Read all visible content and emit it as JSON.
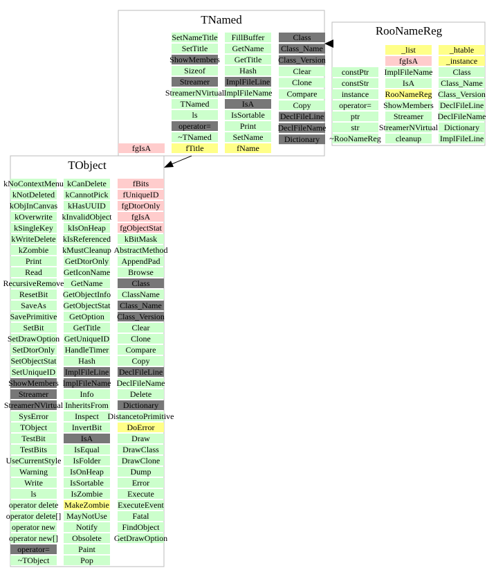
{
  "boxes": [
    {
      "title": "TNamed",
      "columns": [
        [
          {
            "label": "fgIsA",
            "color": "#ffcccc"
          }
        ],
        [
          {
            "label": "SetNameTitle",
            "color": "#ccffcc"
          },
          {
            "label": "SetTitle",
            "color": "#ccffcc"
          },
          {
            "label": "ShowMembers",
            "color": "#777777"
          },
          {
            "label": "Sizeof",
            "color": "#ccffcc"
          },
          {
            "label": "Streamer",
            "color": "#777777"
          },
          {
            "label": "StreamerNVirtual",
            "color": "#ccffcc"
          },
          {
            "label": "TNamed",
            "color": "#ccffcc"
          },
          {
            "label": "ls",
            "color": "#ccffcc"
          },
          {
            "label": "operator=",
            "color": "#777777"
          },
          {
            "label": "~TNamed",
            "color": "#ccffcc"
          },
          {
            "label": "fTitle",
            "color": "#ffff88"
          }
        ],
        [
          {
            "label": "FillBuffer",
            "color": "#ccffcc"
          },
          {
            "label": "GetName",
            "color": "#ccffcc"
          },
          {
            "label": "GetTitle",
            "color": "#ccffcc"
          },
          {
            "label": "Hash",
            "color": "#ccffcc"
          },
          {
            "label": "ImplFileLine",
            "color": "#777777"
          },
          {
            "label": "ImplFileName",
            "color": "#ccffcc"
          },
          {
            "label": "IsA",
            "color": "#777777"
          },
          {
            "label": "IsSortable",
            "color": "#ccffcc"
          },
          {
            "label": "Print",
            "color": "#ccffcc"
          },
          {
            "label": "SetName",
            "color": "#ccffcc"
          },
          {
            "label": "fName",
            "color": "#ffff88"
          }
        ],
        [
          {
            "label": "Class",
            "color": "#777777"
          },
          {
            "label": "Class_Name",
            "color": "#777777"
          },
          {
            "label": "Class_Version",
            "color": "#777777"
          },
          {
            "label": "Clear",
            "color": "#ccffcc"
          },
          {
            "label": "Clone",
            "color": "#ccffcc"
          },
          {
            "label": "Compare",
            "color": "#ccffcc"
          },
          {
            "label": "Copy",
            "color": "#ccffcc"
          },
          {
            "label": "DeclFileLine",
            "color": "#777777"
          },
          {
            "label": "DeclFileName",
            "color": "#777777"
          },
          {
            "label": "Dictionary",
            "color": "#777777"
          }
        ]
      ]
    },
    {
      "title": "RooNameReg",
      "columns": [
        [
          {
            "label": "constPtr",
            "color": "#ccffcc"
          },
          {
            "label": "constStr",
            "color": "#ccffcc"
          },
          {
            "label": "instance",
            "color": "#ccffcc"
          },
          {
            "label": "operator=",
            "color": "#ccffcc"
          },
          {
            "label": "ptr",
            "color": "#ccffcc"
          },
          {
            "label": "str",
            "color": "#ccffcc"
          },
          {
            "label": "~RooNameReg",
            "color": "#ccffcc"
          }
        ],
        [
          {
            "label": "_list",
            "color": "#ffff88"
          },
          {
            "label": "fgIsA",
            "color": "#ffcccc"
          },
          {
            "label": "ImplFileName",
            "color": "#ccffcc"
          },
          {
            "label": "IsA",
            "color": "#ccffcc"
          },
          {
            "label": "RooNameReg",
            "color": "#ffff88"
          },
          {
            "label": "ShowMembers",
            "color": "#ccffcc"
          },
          {
            "label": "Streamer",
            "color": "#ccffcc"
          },
          {
            "label": "StreamerNVirtual",
            "color": "#ccffcc"
          },
          {
            "label": "cleanup",
            "color": "#ccffcc"
          }
        ],
        [
          {
            "label": "_htable",
            "color": "#ffff88"
          },
          {
            "label": "_instance",
            "color": "#ffff88"
          },
          {
            "label": "Class",
            "color": "#ccffcc"
          },
          {
            "label": "Class_Name",
            "color": "#ccffcc"
          },
          {
            "label": "Class_Version",
            "color": "#ccffcc"
          },
          {
            "label": "DeclFileLine",
            "color": "#ccffcc"
          },
          {
            "label": "DeclFileName",
            "color": "#ccffcc"
          },
          {
            "label": "Dictionary",
            "color": "#ccffcc"
          },
          {
            "label": "ImplFileLine",
            "color": "#ccffcc"
          }
        ]
      ]
    },
    {
      "title": "TObject",
      "columns": [
        [
          {
            "label": "kNoContextMenu",
            "color": "#ccffcc"
          },
          {
            "label": "kNotDeleted",
            "color": "#ccffcc"
          },
          {
            "label": "kObjInCanvas",
            "color": "#ccffcc"
          },
          {
            "label": "kOverwrite",
            "color": "#ccffcc"
          },
          {
            "label": "kSingleKey",
            "color": "#ccffcc"
          },
          {
            "label": "kWriteDelete",
            "color": "#ccffcc"
          },
          {
            "label": "kZombie",
            "color": "#ccffcc"
          },
          {
            "label": "Print",
            "color": "#ccffcc"
          },
          {
            "label": "Read",
            "color": "#ccffcc"
          },
          {
            "label": "RecursiveRemove",
            "color": "#ccffcc"
          },
          {
            "label": "ResetBit",
            "color": "#ccffcc"
          },
          {
            "label": "SaveAs",
            "color": "#ccffcc"
          },
          {
            "label": "SavePrimitive",
            "color": "#ccffcc"
          },
          {
            "label": "SetBit",
            "color": "#ccffcc"
          },
          {
            "label": "SetDrawOption",
            "color": "#ccffcc"
          },
          {
            "label": "SetDtorOnly",
            "color": "#ccffcc"
          },
          {
            "label": "SetObjectStat",
            "color": "#ccffcc"
          },
          {
            "label": "SetUniqueID",
            "color": "#ccffcc"
          },
          {
            "label": "ShowMembers",
            "color": "#777777"
          },
          {
            "label": "Streamer",
            "color": "#777777"
          },
          {
            "label": "StreamerNVirtual",
            "color": "#777777"
          },
          {
            "label": "SysError",
            "color": "#ccffcc"
          },
          {
            "label": "TObject",
            "color": "#ccffcc"
          },
          {
            "label": "TestBit",
            "color": "#ccffcc"
          },
          {
            "label": "TestBits",
            "color": "#ccffcc"
          },
          {
            "label": "UseCurrentStyle",
            "color": "#ccffcc"
          },
          {
            "label": "Warning",
            "color": "#ccffcc"
          },
          {
            "label": "Write",
            "color": "#ccffcc"
          },
          {
            "label": "ls",
            "color": "#ccffcc"
          },
          {
            "label": "operator delete",
            "color": "#ccffcc"
          },
          {
            "label": "operator delete[]",
            "color": "#ccffcc"
          },
          {
            "label": "operator new",
            "color": "#ccffcc"
          },
          {
            "label": "operator new[]",
            "color": "#ccffcc"
          },
          {
            "label": "operator=",
            "color": "#777777"
          },
          {
            "label": "~TObject",
            "color": "#ccffcc"
          }
        ],
        [
          {
            "label": "kCanDelete",
            "color": "#ccffcc"
          },
          {
            "label": "kCannotPick",
            "color": "#ccffcc"
          },
          {
            "label": "kHasUUID",
            "color": "#ccffcc"
          },
          {
            "label": "kInvalidObject",
            "color": "#ccffcc"
          },
          {
            "label": "kIsOnHeap",
            "color": "#ccffcc"
          },
          {
            "label": "kIsReferenced",
            "color": "#ccffcc"
          },
          {
            "label": "kMustCleanup",
            "color": "#ccffcc"
          },
          {
            "label": "GetDtorOnly",
            "color": "#ccffcc"
          },
          {
            "label": "GetIconName",
            "color": "#ccffcc"
          },
          {
            "label": "GetName",
            "color": "#ccffcc"
          },
          {
            "label": "GetObjectInfo",
            "color": "#ccffcc"
          },
          {
            "label": "GetObjectStat",
            "color": "#ccffcc"
          },
          {
            "label": "GetOption",
            "color": "#ccffcc"
          },
          {
            "label": "GetTitle",
            "color": "#ccffcc"
          },
          {
            "label": "GetUniqueID",
            "color": "#ccffcc"
          },
          {
            "label": "HandleTimer",
            "color": "#ccffcc"
          },
          {
            "label": "Hash",
            "color": "#ccffcc"
          },
          {
            "label": "ImplFileLine",
            "color": "#777777"
          },
          {
            "label": "ImplFileName",
            "color": "#777777"
          },
          {
            "label": "Info",
            "color": "#ccffcc"
          },
          {
            "label": "InheritsFrom",
            "color": "#ccffcc"
          },
          {
            "label": "Inspect",
            "color": "#ccffcc"
          },
          {
            "label": "InvertBit",
            "color": "#ccffcc"
          },
          {
            "label": "IsA",
            "color": "#777777"
          },
          {
            "label": "IsEqual",
            "color": "#ccffcc"
          },
          {
            "label": "IsFolder",
            "color": "#ccffcc"
          },
          {
            "label": "IsOnHeap",
            "color": "#ccffcc"
          },
          {
            "label": "IsSortable",
            "color": "#ccffcc"
          },
          {
            "label": "IsZombie",
            "color": "#ccffcc"
          },
          {
            "label": "MakeZombie",
            "color": "#ffff88"
          },
          {
            "label": "MayNotUse",
            "color": "#ccffcc"
          },
          {
            "label": "Notify",
            "color": "#ccffcc"
          },
          {
            "label": "Obsolete",
            "color": "#ccffcc"
          },
          {
            "label": "Paint",
            "color": "#ccffcc"
          },
          {
            "label": "Pop",
            "color": "#ccffcc"
          }
        ],
        [
          {
            "label": "fBits",
            "color": "#ffcccc"
          },
          {
            "label": "fUniqueID",
            "color": "#ffcccc"
          },
          {
            "label": "fgDtorOnly",
            "color": "#ffcccc"
          },
          {
            "label": "fgIsA",
            "color": "#ffcccc"
          },
          {
            "label": "fgObjectStat",
            "color": "#ffcccc"
          },
          {
            "label": "kBitMask",
            "color": "#ccffcc"
          },
          {
            "label": "AbstractMethod",
            "color": "#ccffcc"
          },
          {
            "label": "AppendPad",
            "color": "#ccffcc"
          },
          {
            "label": "Browse",
            "color": "#ccffcc"
          },
          {
            "label": "Class",
            "color": "#777777"
          },
          {
            "label": "ClassName",
            "color": "#ccffcc"
          },
          {
            "label": "Class_Name",
            "color": "#777777"
          },
          {
            "label": "Class_Version",
            "color": "#777777"
          },
          {
            "label": "Clear",
            "color": "#ccffcc"
          },
          {
            "label": "Clone",
            "color": "#ccffcc"
          },
          {
            "label": "Compare",
            "color": "#ccffcc"
          },
          {
            "label": "Copy",
            "color": "#ccffcc"
          },
          {
            "label": "DeclFileLine",
            "color": "#777777"
          },
          {
            "label": "DeclFileName",
            "color": "#ccffcc"
          },
          {
            "label": "Delete",
            "color": "#ccffcc"
          },
          {
            "label": "Dictionary",
            "color": "#777777"
          },
          {
            "label": "DistancetoPrimitive",
            "color": "#ccffcc"
          },
          {
            "label": "DoError",
            "color": "#ffff88"
          },
          {
            "label": "Draw",
            "color": "#ccffcc"
          },
          {
            "label": "DrawClass",
            "color": "#ccffcc"
          },
          {
            "label": "DrawClone",
            "color": "#ccffcc"
          },
          {
            "label": "Dump",
            "color": "#ccffcc"
          },
          {
            "label": "Error",
            "color": "#ccffcc"
          },
          {
            "label": "Execute",
            "color": "#ccffcc"
          },
          {
            "label": "ExecuteEvent",
            "color": "#ccffcc"
          },
          {
            "label": "Fatal",
            "color": "#ccffcc"
          },
          {
            "label": "FindObject",
            "color": "#ccffcc"
          },
          {
            "label": "GetDrawOption",
            "color": "#ccffcc"
          }
        ]
      ]
    }
  ]
}
